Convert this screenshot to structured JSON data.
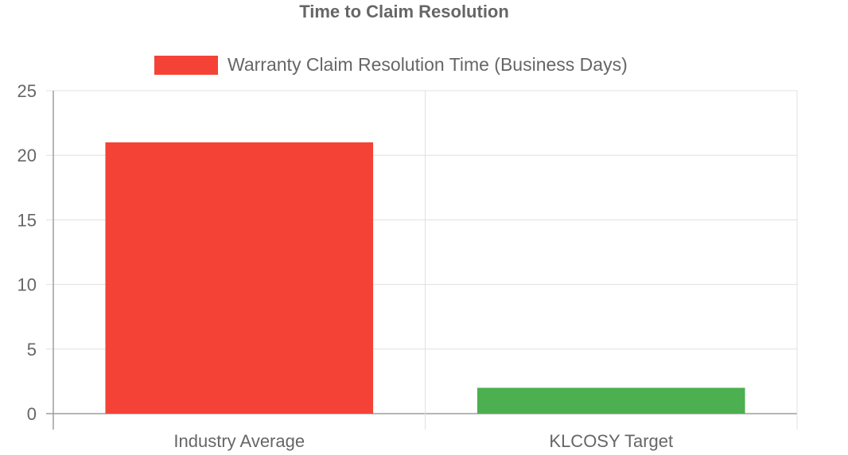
{
  "chart_data": {
    "type": "bar",
    "title": "Time to Claim Resolution",
    "categories": [
      "Industry Average",
      "KLCOSY Target"
    ],
    "series": [
      {
        "name": "Warranty Claim Resolution Time (Business Days)",
        "values": [
          21,
          2
        ],
        "colors": [
          "#f44336",
          "#4caf50"
        ]
      }
    ],
    "legend_color": "#f44336",
    "ylim": [
      0,
      25
    ],
    "yticks": [
      "0",
      "5",
      "10",
      "15",
      "20",
      "25"
    ],
    "legend_position": "top",
    "grid": true
  }
}
